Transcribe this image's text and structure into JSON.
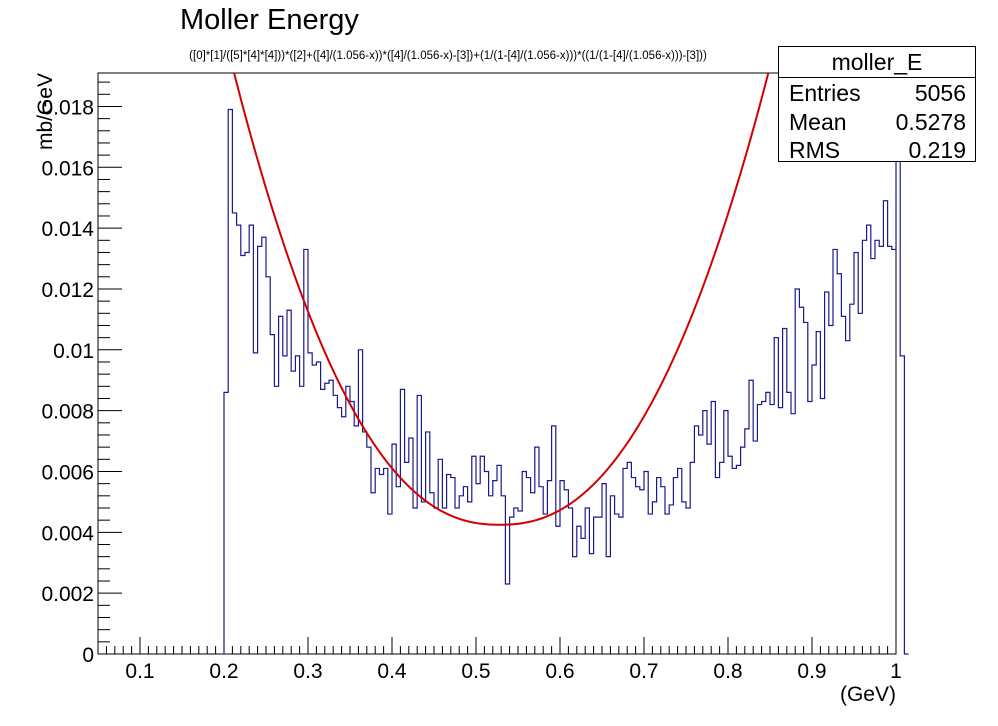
{
  "chart_data": {
    "type": "histogram",
    "title": "Moller Energy",
    "subtitle": "([0]*[1]/([5]*[4]*[4]))*([2]+([4]/(1.056-x))*([4]/(1.056-x)-[3])+(1/(1-[4]/(1.056-x)))*((1/(1-[4]/(1.056-x)))-[3]))",
    "xlabel": "(GeV)",
    "ylabel": "mb/GeV",
    "xlim": [
      0.05,
      1.0
    ],
    "ylim": [
      0,
      0.0191
    ],
    "xticks": [
      0.1,
      0.2,
      0.3,
      0.4,
      0.5,
      0.6,
      0.7,
      0.8,
      0.9,
      1
    ],
    "xtick_labels": [
      "0.1",
      "0.2",
      "0.3",
      "0.4",
      "0.5",
      "0.6",
      "0.7",
      "0.8",
      "0.9",
      "1"
    ],
    "yticks": [
      0,
      0.002,
      0.004,
      0.006,
      0.008,
      0.01,
      0.012,
      0.014,
      0.016,
      0.018
    ],
    "ytick_labels": [
      "0",
      "0.002",
      "0.004",
      "0.006",
      "0.008",
      "0.01",
      "0.012",
      "0.014",
      "0.016",
      "0.018"
    ],
    "grid": false,
    "histogram": {
      "name": "moller_E",
      "bin_start": 0.2,
      "bin_width": 0.005,
      "values": [
        0.0086,
        0.0179,
        0.0145,
        0.0141,
        0.0131,
        0.0132,
        0.0141,
        0.0099,
        0.0134,
        0.0137,
        0.0124,
        0.0105,
        0.0088,
        0.0111,
        0.0098,
        0.0113,
        0.0093,
        0.0098,
        0.0088,
        0.0133,
        0.0099,
        0.0095,
        0.0096,
        0.0087,
        0.0089,
        0.009,
        0.0085,
        0.0081,
        0.0078,
        0.0088,
        0.0083,
        0.0075,
        0.01,
        0.0073,
        0.0068,
        0.0053,
        0.0061,
        0.0059,
        0.0061,
        0.0046,
        0.0069,
        0.0055,
        0.0087,
        0.0063,
        0.0071,
        0.0048,
        0.0085,
        0.005,
        0.0073,
        0.0053,
        0.0048,
        0.0064,
        0.0048,
        0.0059,
        0.0058,
        0.0048,
        0.0052,
        0.0055,
        0.005,
        0.0065,
        0.0056,
        0.0065,
        0.006,
        0.0052,
        0.0057,
        0.0062,
        0.0052,
        0.0023,
        0.0045,
        0.0048,
        0.0047,
        0.006,
        0.0058,
        0.0053,
        0.0068,
        0.0055,
        0.0046,
        0.0057,
        0.0075,
        0.0042,
        0.0057,
        0.0054,
        0.0048,
        0.0032,
        0.0042,
        0.0038,
        0.0048,
        0.0033,
        0.0045,
        0.0045,
        0.0056,
        0.0032,
        0.0052,
        0.0046,
        0.0045,
        0.0061,
        0.0063,
        0.0058,
        0.0055,
        0.0054,
        0.006,
        0.0046,
        0.005,
        0.0058,
        0.0055,
        0.0046,
        0.0049,
        0.0058,
        0.0061,
        0.005,
        0.0048,
        0.0063,
        0.0075,
        0.0072,
        0.008,
        0.0069,
        0.0083,
        0.0058,
        0.0063,
        0.008,
        0.0065,
        0.0061,
        0.0062,
        0.0068,
        0.0074,
        0.009,
        0.007,
        0.0082,
        0.0083,
        0.0086,
        0.0082,
        0.0104,
        0.0081,
        0.0107,
        0.0086,
        0.0079,
        0.012,
        0.0114,
        0.0109,
        0.0083,
        0.0095,
        0.0106,
        0.0084,
        0.0119,
        0.0108,
        0.0133,
        0.0125,
        0.0111,
        0.0103,
        0.0115,
        0.0132,
        0.0112,
        0.0136,
        0.0141,
        0.013,
        0.0136,
        0.0134,
        0.0149,
        0.0134,
        0.0133,
        0.0182,
        0.0098,
        0.0
      ]
    },
    "fit": {
      "type": "line",
      "x_start": 0.208,
      "x_end": 0.853,
      "x_min": 0.528,
      "y_min": 0.00425,
      "x_top_left": 0.212,
      "x_top_right": 0.848,
      "y_top": 0.0191
    },
    "colors": {
      "histogram": "#1a1a8a",
      "fit": "#d40000",
      "axis": "#000000"
    },
    "legend": "top-right"
  },
  "stats": {
    "name": "moller_E",
    "rows": [
      {
        "label": "Entries",
        "value": "5056"
      },
      {
        "label": "Mean",
        "value": "0.5278"
      },
      {
        "label": "RMS",
        "value": "0.219"
      }
    ]
  }
}
